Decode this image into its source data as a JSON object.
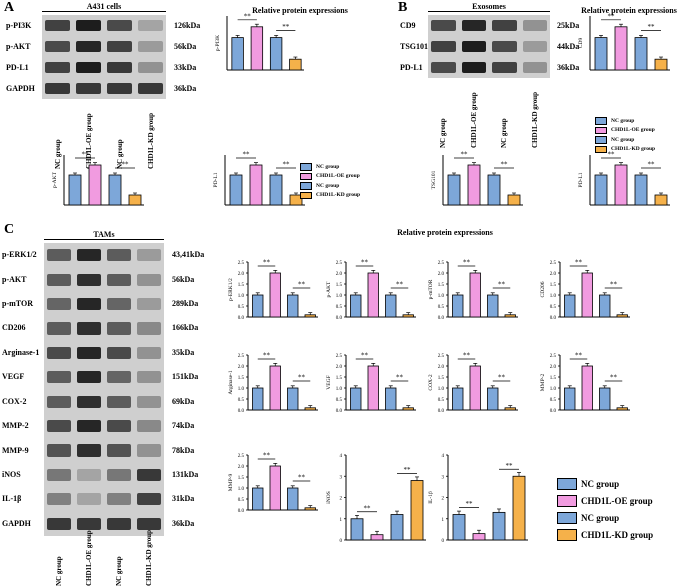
{
  "panelA": {
    "letter": "A",
    "blot_title": "A431 cells",
    "rows": [
      "p-PI3K",
      "p-AKT",
      "PD-L1",
      "GAPDH"
    ],
    "kda": [
      "126kDa",
      "56kDa",
      "33kDa",
      "36kDa"
    ],
    "groups": [
      "NC group",
      "CHD1L-OE group",
      "NC group",
      "CHD1L-KD group"
    ],
    "chart_title": "Relative protein expressions"
  },
  "panelB": {
    "letter": "B",
    "blot_title": "Exosomes",
    "rows": [
      "CD9",
      "TSG101",
      "PD-L1"
    ],
    "kda": [
      "25kDa",
      "44kDa",
      "36kDa"
    ],
    "groups": [
      "NC group",
      "CHD1L-OE group",
      "NC group",
      "CHD1L-KD group"
    ],
    "chart_title": "Relative protein expressions"
  },
  "panelC": {
    "letter": "C",
    "blot_title": "TAMs",
    "rows": [
      "p-ERK1/2",
      "p-AKT",
      "p-mTOR",
      "CD206",
      "Arginase-1",
      "VEGF",
      "COX-2",
      "MMP-2",
      "MMP-9",
      "iNOS",
      "IL-1β",
      "GAPDH"
    ],
    "kda": [
      "43,41kDa",
      "56kDa",
      "289kDa",
      "166kDa",
      "35kDa",
      "151kDa",
      "69kDa",
      "74kDa",
      "78kDa",
      "131kDa",
      "31kDa",
      "36kDa"
    ],
    "groups": [
      "NC group",
      "CHD1L-OE group",
      "NC group",
      "CHD1L-KD group"
    ],
    "chart_title": "Relative protein expressions"
  },
  "legend_small": [
    "NC group",
    "CHD1L-OE group",
    "NC group",
    "CHD1L-KD group"
  ],
  "legend_large": [
    "NC group",
    "CHD1L-OE  group",
    "NC group",
    "CHD1L-KD group"
  ],
  "colors": {
    "nc": "#7da7d9",
    "oe": "#f19be0",
    "kd": "#f5b14a",
    "line": "#000000"
  },
  "chart_data": [
    {
      "type": "bar",
      "ylabel": "p-PI3K",
      "ylim": [
        0,
        5
      ],
      "yticks": [],
      "values": [
        3,
        4,
        3,
        1
      ],
      "sig": [
        "**",
        "**"
      ]
    },
    {
      "type": "bar",
      "ylabel": "CD9",
      "ylim": [
        0,
        5
      ],
      "yticks": [],
      "values": [
        3,
        4,
        3,
        1
      ],
      "sig": [
        "**",
        "**"
      ]
    },
    {
      "type": "bar",
      "ylabel": "p-AKT",
      "ylim": [
        0,
        5
      ],
      "yticks": [],
      "values": [
        3,
        4,
        3,
        1
      ],
      "sig": [
        "**",
        "**"
      ]
    },
    {
      "type": "bar",
      "ylabel": "PD-L1",
      "ylim": [
        0,
        5
      ],
      "yticks": [],
      "values": [
        3,
        4,
        3,
        1
      ],
      "sig": [
        "**",
        "**"
      ]
    },
    {
      "type": "bar",
      "ylabel": "TSG101",
      "ylim": [
        0,
        5
      ],
      "yticks": [],
      "values": [
        3,
        4,
        3,
        1
      ],
      "sig": [
        "**",
        "**"
      ]
    },
    {
      "type": "bar",
      "ylabel": "PD-L1",
      "ylim": [
        0,
        5
      ],
      "yticks": [],
      "values": [
        3,
        4,
        3,
        1
      ],
      "sig": [
        "**",
        "**"
      ]
    },
    {
      "type": "bar",
      "ylabel": "p-ERK1/2",
      "ylim": [
        0,
        2.5
      ],
      "yticks": [
        "0.0",
        "0.5",
        "1.0",
        "1.5",
        "2.0",
        "2.5"
      ],
      "values": [
        1,
        2,
        1,
        0.1
      ],
      "sig": [
        "**",
        "**"
      ]
    },
    {
      "type": "bar",
      "ylabel": "p-AKT",
      "ylim": [
        0,
        2.5
      ],
      "yticks": [
        "0.0",
        "0.5",
        "1.0",
        "1.5",
        "2.0",
        "2.5"
      ],
      "values": [
        1,
        2,
        1,
        0.1
      ],
      "sig": [
        "**",
        "**"
      ]
    },
    {
      "type": "bar",
      "ylabel": "p-mTOR",
      "ylim": [
        0,
        2.5
      ],
      "yticks": [
        "0.0",
        "0.5",
        "1.0",
        "1.5",
        "2.0",
        "2.5"
      ],
      "values": [
        1,
        2,
        1,
        0.1
      ],
      "sig": [
        "**",
        "**"
      ]
    },
    {
      "type": "bar",
      "ylabel": "CD206",
      "ylim": [
        0,
        2.5
      ],
      "yticks": [
        "0.0",
        "0.5",
        "1.0",
        "1.5",
        "2.0",
        "2.5"
      ],
      "values": [
        1,
        2,
        1,
        0.1
      ],
      "sig": [
        "**",
        "**"
      ]
    },
    {
      "type": "bar",
      "ylabel": "Arginase-1",
      "ylim": [
        0,
        2.5
      ],
      "yticks": [
        "0.0",
        "0.5",
        "1.0",
        "1.5",
        "2.0",
        "2.5"
      ],
      "values": [
        1,
        2,
        1,
        0.1
      ],
      "sig": [
        "**",
        "**"
      ]
    },
    {
      "type": "bar",
      "ylabel": "VEGF",
      "ylim": [
        0,
        2.5
      ],
      "yticks": [
        "0.0",
        "0.5",
        "1.0",
        "1.5",
        "2.0",
        "2.5"
      ],
      "values": [
        1,
        2,
        1,
        0.1
      ],
      "sig": [
        "**",
        "**"
      ]
    },
    {
      "type": "bar",
      "ylabel": "COX-2",
      "ylim": [
        0,
        2.5
      ],
      "yticks": [
        "0.0",
        "0.5",
        "1.0",
        "1.5",
        "2.0",
        "2.5"
      ],
      "values": [
        1,
        2,
        1,
        0.1
      ],
      "sig": [
        "**",
        "**"
      ]
    },
    {
      "type": "bar",
      "ylabel": "MMP-2",
      "ylim": [
        0,
        2.5
      ],
      "yticks": [
        "0.0",
        "0.5",
        "1.0",
        "1.5",
        "2.0",
        "2.5"
      ],
      "values": [
        1,
        2,
        1,
        0.1
      ],
      "sig": [
        "**",
        "**"
      ]
    },
    {
      "type": "bar",
      "ylabel": "MMP-9",
      "ylim": [
        0,
        2.5
      ],
      "yticks": [
        "0.0",
        "0.5",
        "1.0",
        "1.5",
        "2.0",
        "2.5"
      ],
      "values": [
        1,
        2,
        1,
        0.1
      ],
      "sig": [
        "**",
        "**"
      ]
    },
    {
      "type": "bar",
      "ylabel": "iNOS",
      "ylim": [
        0,
        4
      ],
      "yticks": [
        "0",
        "1",
        "2",
        "3",
        "4"
      ],
      "values": [
        1,
        0.25,
        1.2,
        2.8
      ],
      "sig": [
        "**",
        "**"
      ]
    },
    {
      "type": "bar",
      "ylabel": "IL-1β",
      "ylim": [
        0,
        4
      ],
      "yticks": [
        "0",
        "1",
        "2",
        "3",
        "4"
      ],
      "values": [
        1.2,
        0.3,
        1.3,
        3.0
      ],
      "sig": [
        "**",
        "**"
      ]
    }
  ]
}
